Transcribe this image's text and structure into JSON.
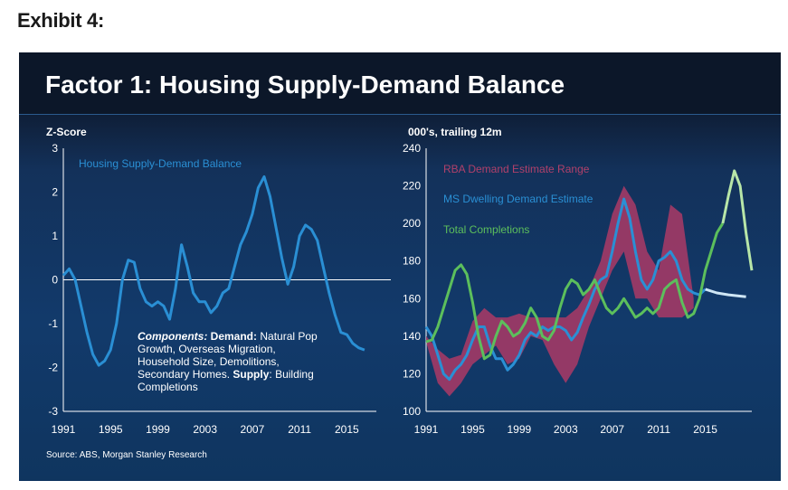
{
  "exhibit_label": "Exhibit 4:",
  "title": "Factor 1: Housing Supply-Demand Balance",
  "source": "Source: ABS, Morgan Stanley Research",
  "colors": {
    "left_line": "#2a8fd4",
    "rba_band": "#a33a66",
    "ms_line": "#2a8fd4",
    "completions": "#5cbf5c",
    "completions_forecast": "#b8e6a8",
    "ms_forecast": "#cfe6f5"
  },
  "chart_data": [
    {
      "type": "line",
      "title": "Housing Supply-Demand Balance",
      "ylabel": "Z-Score",
      "ylim": [
        -3,
        3
      ],
      "y_ticks": [
        "3",
        "2",
        "1",
        "0",
        "-1",
        "-2",
        "-3"
      ],
      "x_ticks": [
        "1991",
        "1995",
        "1999",
        "2003",
        "2007",
        "2011",
        "2015"
      ],
      "xlim": [
        1991,
        2017.5
      ],
      "annotation": {
        "line1_italic": "Components:",
        "line1_bold": " Demand:",
        "line1_rest": " Natural Pop",
        "line2": "Growth, Overseas Migration,",
        "line3": "Household Size, Demolitions,",
        "line4_start": "Secondary Homes. ",
        "line4_bold": "Supply",
        "line4_rest": ": Building",
        "line5": "Completions"
      },
      "series": [
        {
          "name": "Housing Supply-Demand Balance",
          "x": [
            1991,
            1991.5,
            1992,
            1992.5,
            1993,
            1993.5,
            1994,
            1994.5,
            1995,
            1995.5,
            1996,
            1996.5,
            1997,
            1997.5,
            1998,
            1998.5,
            1999,
            1999.5,
            2000,
            2000.5,
            2001,
            2001.5,
            2002,
            2002.5,
            2003,
            2003.5,
            2004,
            2004.5,
            2005,
            2005.5,
            2006,
            2006.5,
            2007,
            2007.5,
            2008,
            2008.5,
            2009,
            2009.5,
            2010,
            2010.5,
            2011,
            2011.5,
            2012,
            2012.5,
            2013,
            2013.5,
            2014,
            2014.5,
            2015,
            2015.5,
            2016,
            2016.5
          ],
          "values": [
            0.1,
            0.25,
            0.0,
            -0.6,
            -1.2,
            -1.7,
            -1.95,
            -1.85,
            -1.6,
            -1.0,
            0.0,
            0.45,
            0.4,
            -0.2,
            -0.5,
            -0.6,
            -0.5,
            -0.6,
            -0.9,
            -0.2,
            0.8,
            0.3,
            -0.3,
            -0.5,
            -0.5,
            -0.75,
            -0.6,
            -0.3,
            -0.2,
            0.3,
            0.8,
            1.1,
            1.5,
            2.1,
            2.35,
            1.9,
            1.2,
            0.5,
            -0.1,
            0.3,
            1.0,
            1.25,
            1.15,
            0.9,
            0.3,
            -0.3,
            -0.8,
            -1.2,
            -1.25,
            -1.45,
            -1.55,
            -1.6
          ]
        }
      ]
    },
    {
      "type": "line",
      "ylabel": "000's, trailing 12m",
      "ylim": [
        100,
        240
      ],
      "y_ticks": [
        "240",
        "220",
        "200",
        "180",
        "160",
        "140",
        "120",
        "100"
      ],
      "x_ticks": [
        "1991",
        "1995",
        "1999",
        "2003",
        "2007",
        "2011",
        "2015"
      ],
      "xlim": [
        1991,
        2019
      ],
      "legend": [
        "RBA Demand Estimate Range",
        "MS Dwelling Demand Estimate",
        "Total Completions"
      ],
      "band": {
        "name": "RBA Demand Estimate Range",
        "x": [
          1991,
          1992,
          1993,
          1994,
          1995,
          1996,
          1997,
          1998,
          1999,
          2000,
          2001,
          2002,
          2003,
          2004,
          2005,
          2006,
          2007,
          2008,
          2009,
          2010,
          2011,
          2012,
          2013,
          2014
        ],
        "upper": [
          140,
          133,
          128,
          130,
          148,
          155,
          150,
          150,
          152,
          150,
          150,
          150,
          150,
          155,
          165,
          180,
          205,
          220,
          210,
          185,
          175,
          210,
          205,
          160
        ],
        "lower": [
          137,
          115,
          108,
          115,
          125,
          130,
          135,
          125,
          128,
          140,
          138,
          125,
          115,
          125,
          145,
          160,
          175,
          185,
          160,
          160,
          150,
          150,
          150,
          155
        ]
      },
      "series": [
        {
          "name": "MS Dwelling Demand Estimate",
          "x": [
            1991,
            1991.5,
            1992,
            1992.5,
            1993,
            1993.5,
            1994,
            1994.5,
            1995,
            1995.5,
            1996,
            1996.5,
            1997,
            1997.5,
            1998,
            1998.5,
            1999,
            1999.5,
            2000,
            2000.5,
            2001,
            2001.5,
            2002,
            2002.5,
            2003,
            2003.5,
            2004,
            2004.5,
            2005,
            2005.5,
            2006,
            2006.5,
            2007,
            2007.5,
            2008,
            2008.5,
            2009,
            2009.5,
            2010,
            2010.5,
            2011,
            2011.5,
            2012,
            2012.5,
            2013,
            2013.5,
            2014,
            2014.5,
            2015
          ],
          "values": [
            145,
            140,
            130,
            120,
            117,
            122,
            125,
            130,
            138,
            145,
            145,
            135,
            128,
            128,
            122,
            125,
            130,
            138,
            142,
            140,
            145,
            143,
            145,
            145,
            143,
            138,
            142,
            150,
            157,
            165,
            170,
            172,
            185,
            200,
            213,
            203,
            185,
            170,
            165,
            170,
            180,
            182,
            185,
            180,
            170,
            165,
            163,
            162,
            165
          ]
        },
        {
          "name": "MS Dwelling Demand Estimate (forecast)",
          "x": [
            2015,
            2016,
            2017,
            2018.5
          ],
          "values": [
            165,
            163,
            162,
            161
          ]
        },
        {
          "name": "Total Completions",
          "x": [
            1991,
            1991.5,
            1992,
            1992.5,
            1993,
            1993.5,
            1994,
            1994.5,
            1995,
            1995.5,
            1996,
            1996.5,
            1997,
            1997.5,
            1998,
            1998.5,
            1999,
            1999.5,
            2000,
            2000.5,
            2001,
            2001.5,
            2002,
            2002.5,
            2003,
            2003.5,
            2004,
            2004.5,
            2005,
            2005.5,
            2006,
            2006.5,
            2007,
            2007.5,
            2008,
            2008.5,
            2009,
            2009.5,
            2010,
            2010.5,
            2011,
            2011.5,
            2012,
            2012.5,
            2013,
            2013.5,
            2014,
            2014.5,
            2015,
            2015.5,
            2016,
            2016.5
          ],
          "values": [
            137,
            138,
            145,
            155,
            165,
            175,
            178,
            173,
            158,
            140,
            128,
            130,
            140,
            148,
            145,
            140,
            142,
            147,
            155,
            150,
            140,
            138,
            143,
            155,
            165,
            170,
            168,
            162,
            165,
            170,
            162,
            155,
            152,
            155,
            160,
            155,
            150,
            152,
            155,
            152,
            155,
            165,
            168,
            170,
            158,
            150,
            152,
            160,
            175,
            185,
            195,
            200
          ]
        },
        {
          "name": "Total Completions (forecast)",
          "x": [
            2016.5,
            2017,
            2017.5,
            2018,
            2018.5,
            2019
          ],
          "values": [
            200,
            215,
            228,
            220,
            195,
            175
          ]
        }
      ]
    }
  ]
}
